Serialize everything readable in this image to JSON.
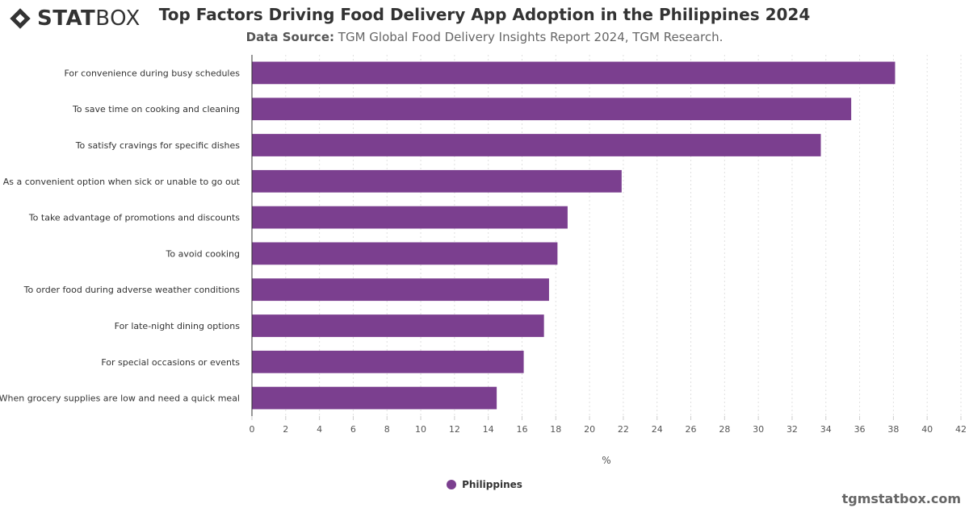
{
  "brand": {
    "logo_bold": "STAT",
    "logo_light": "BOX",
    "site": "tgmstatbox.com"
  },
  "header": {
    "title": "Top Factors Driving Food Delivery App Adoption in the Philippines 2024",
    "source_label": "Data Source:",
    "source_text": "TGM Global Food Delivery Insights Report 2024, TGM Research."
  },
  "colors": {
    "bar": "#7b3f8f",
    "grid": "#e0e0e0",
    "axis": "#333333"
  },
  "legend": {
    "label": "Philippines"
  },
  "chart_data": {
    "type": "bar",
    "orientation": "horizontal",
    "title": "Top Factors Driving Food Delivery App Adoption in the Philippines 2024",
    "xlabel": "%",
    "ylabel": "",
    "xlim": [
      0,
      42
    ],
    "x_ticks": [
      0,
      2,
      4,
      6,
      8,
      10,
      12,
      14,
      16,
      18,
      20,
      22,
      24,
      26,
      28,
      30,
      32,
      34,
      36,
      38,
      40,
      42
    ],
    "grid": true,
    "legend_position": "bottom-center",
    "categories": [
      "For convenience during busy schedules",
      "To save time on cooking and cleaning",
      "To satisfy cravings for specific dishes",
      "As a convenient option when sick or unable to go out",
      "To take advantage of promotions and discounts",
      "To avoid cooking",
      "To order food during adverse weather conditions",
      "For late-night dining options",
      "For special occasions or events",
      "When grocery supplies are low and need a quick meal"
    ],
    "series": [
      {
        "name": "Philippines",
        "values": [
          38.1,
          35.5,
          33.7,
          21.9,
          18.7,
          18.1,
          17.6,
          17.3,
          16.1,
          14.5
        ]
      }
    ]
  }
}
